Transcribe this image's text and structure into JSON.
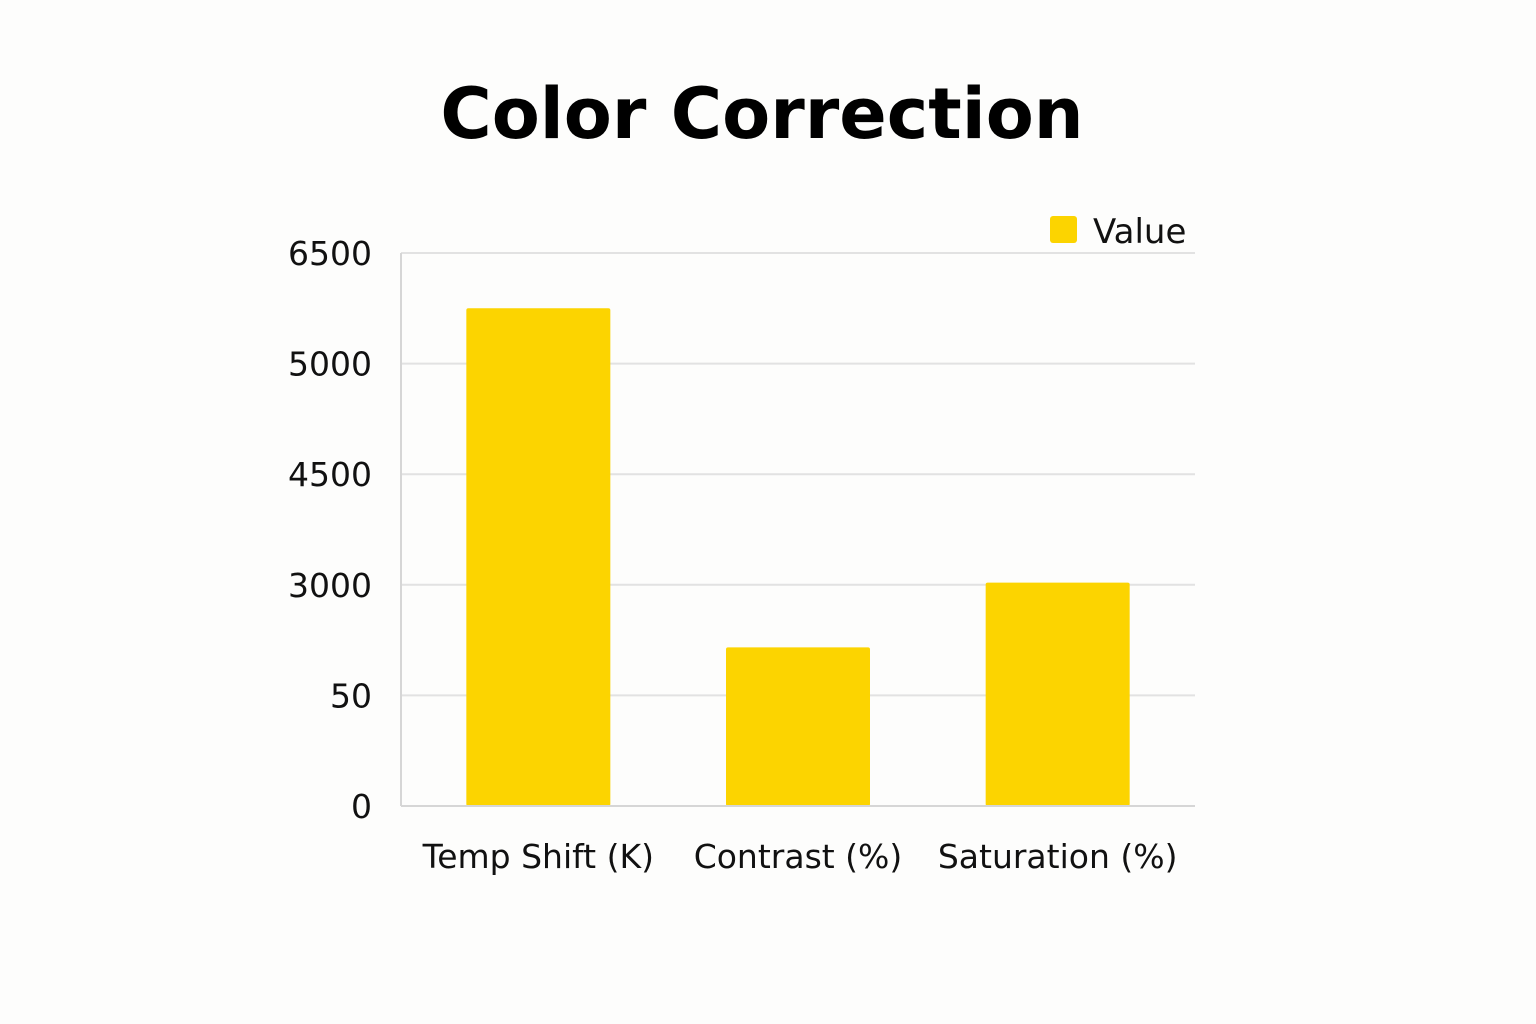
{
  "chart_data": {
    "type": "bar",
    "title": "Color Correction",
    "categories": [
      "Temp Shift (K)",
      "Contrast (%)",
      "Saturation (%)"
    ],
    "series": [
      {
        "name": "Value",
        "values": [
          5750,
          1330,
          3030
        ]
      }
    ],
    "yticks": [
      "0",
      "50",
      "3000",
      "4500",
      "5000",
      "6500"
    ],
    "y_scale": "categorical-ticks",
    "ylim": [
      0,
      6500
    ],
    "xlabel": "",
    "ylabel": "",
    "grid": true,
    "legend": "top-right",
    "colors": {
      "bar": "#fcd400",
      "grid": "#e2e2e2",
      "axis": "#d6d6d6",
      "text": "#111111",
      "background": "#fdfdfc"
    }
  }
}
